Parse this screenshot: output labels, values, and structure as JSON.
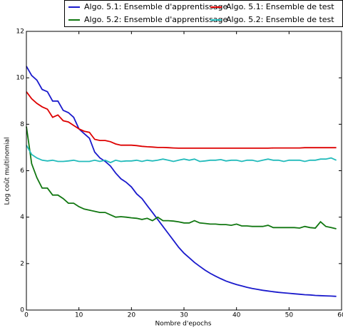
{
  "chart_data": {
    "type": "line",
    "xlabel": "Nombre d'epochs",
    "ylabel": "Log coût multinomial",
    "x": [
      0,
      1,
      2,
      3,
      4,
      5,
      6,
      7,
      8,
      9,
      10,
      11,
      12,
      13,
      14,
      15,
      16,
      17,
      18,
      19,
      20,
      21,
      22,
      23,
      24,
      25,
      26,
      27,
      28,
      29,
      30,
      31,
      32,
      33,
      34,
      35,
      36,
      37,
      38,
      39,
      40,
      41,
      42,
      43,
      44,
      45,
      46,
      47,
      48,
      49,
      50,
      51,
      52,
      53,
      54,
      55,
      56,
      57,
      58,
      59
    ],
    "xlim": [
      0,
      60
    ],
    "xticks": [
      0,
      10,
      20,
      30,
      40,
      50,
      60
    ],
    "ylim": [
      0,
      12
    ],
    "yticks": [
      0,
      2,
      4,
      6,
      8,
      10,
      12
    ],
    "legend": "top",
    "series": [
      {
        "name": "Algo. 5.1: Ensemble d'apprentissage",
        "color": "#1a1acc",
        "values": [
          10.5,
          10.1,
          9.9,
          9.5,
          9.4,
          9.0,
          9.0,
          8.6,
          8.5,
          8.3,
          7.8,
          7.6,
          7.4,
          6.8,
          6.55,
          6.4,
          6.2,
          5.9,
          5.65,
          5.5,
          5.3,
          5.0,
          4.8,
          4.5,
          4.2,
          3.9,
          3.6,
          3.3,
          3.0,
          2.7,
          2.45,
          2.25,
          2.05,
          1.88,
          1.72,
          1.58,
          1.46,
          1.35,
          1.25,
          1.17,
          1.1,
          1.04,
          0.98,
          0.93,
          0.89,
          0.85,
          0.82,
          0.79,
          0.76,
          0.74,
          0.72,
          0.7,
          0.68,
          0.66,
          0.65,
          0.63,
          0.62,
          0.61,
          0.6,
          0.59
        ]
      },
      {
        "name": "Algo. 5.1: Ensemble de test",
        "color": "#dd0000",
        "values": [
          9.4,
          9.1,
          8.9,
          8.75,
          8.65,
          8.3,
          8.4,
          8.15,
          8.1,
          7.95,
          7.8,
          7.7,
          7.65,
          7.35,
          7.3,
          7.3,
          7.25,
          7.15,
          7.1,
          7.1,
          7.1,
          7.08,
          7.05,
          7.03,
          7.02,
          7.0,
          7.0,
          6.99,
          6.98,
          6.97,
          6.97,
          6.97,
          6.97,
          6.97,
          6.97,
          6.97,
          6.97,
          6.97,
          6.97,
          6.97,
          6.97,
          6.97,
          6.97,
          6.97,
          6.97,
          6.97,
          6.97,
          6.98,
          6.98,
          6.98,
          6.98,
          6.98,
          6.98,
          6.99,
          6.99,
          6.99,
          6.99,
          6.99,
          6.99,
          6.99
        ]
      },
      {
        "name": "Algo. 5.2: Ensemble d'apprentissage",
        "color": "#117711",
        "values": [
          7.9,
          6.3,
          5.7,
          5.25,
          5.25,
          4.95,
          4.95,
          4.8,
          4.6,
          4.6,
          4.45,
          4.35,
          4.3,
          4.25,
          4.2,
          4.2,
          4.1,
          4.0,
          4.02,
          4.0,
          3.97,
          3.95,
          3.9,
          3.95,
          3.85,
          4.0,
          3.85,
          3.85,
          3.83,
          3.8,
          3.75,
          3.75,
          3.85,
          3.75,
          3.73,
          3.7,
          3.7,
          3.68,
          3.68,
          3.65,
          3.7,
          3.62,
          3.62,
          3.6,
          3.6,
          3.6,
          3.65,
          3.55,
          3.55,
          3.55,
          3.55,
          3.55,
          3.53,
          3.6,
          3.55,
          3.53,
          3.8,
          3.6,
          3.55,
          3.5
        ]
      },
      {
        "name": "Algo. 5.2: Ensemble de test",
        "color": "#22bbbb",
        "values": [
          7.1,
          6.7,
          6.55,
          6.45,
          6.42,
          6.45,
          6.4,
          6.4,
          6.42,
          6.45,
          6.4,
          6.4,
          6.4,
          6.45,
          6.4,
          6.45,
          6.35,
          6.45,
          6.4,
          6.42,
          6.42,
          6.45,
          6.4,
          6.45,
          6.42,
          6.45,
          6.5,
          6.45,
          6.4,
          6.45,
          6.5,
          6.45,
          6.5,
          6.4,
          6.42,
          6.45,
          6.45,
          6.48,
          6.42,
          6.45,
          6.45,
          6.4,
          6.45,
          6.45,
          6.4,
          6.45,
          6.5,
          6.45,
          6.45,
          6.4,
          6.45,
          6.45,
          6.45,
          6.4,
          6.45,
          6.45,
          6.5,
          6.5,
          6.55,
          6.45
        ]
      }
    ]
  }
}
